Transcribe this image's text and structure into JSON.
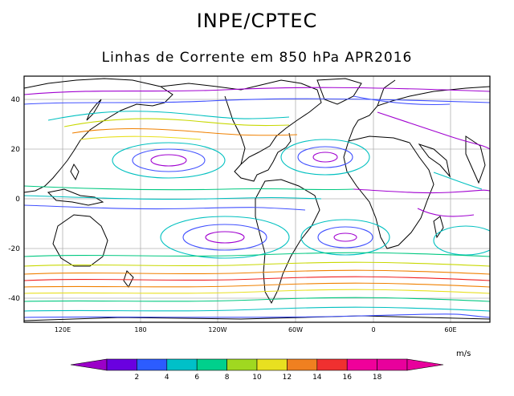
{
  "header": {
    "title": "INPE/CPTEC",
    "subtitle": "Linhas de Corrente em 850 hPa APR2016"
  },
  "map": {
    "lat_ticks": [
      "40",
      "20",
      "0",
      "-20",
      "-40"
    ],
    "lon_ticks": [
      "120E",
      "180",
      "120W",
      "60W",
      "0",
      "60E"
    ]
  },
  "colorbar": {
    "unit": "m/s",
    "labels": [
      "2",
      "4",
      "6",
      "8",
      "10",
      "12",
      "14",
      "16",
      "18"
    ],
    "colors": [
      "#9b00c8",
      "#6a00e0",
      "#2c5cff",
      "#00c0c8",
      "#00d08c",
      "#a0d820",
      "#e8e020",
      "#f08020",
      "#f03030",
      "#f0009a",
      "#e8009c"
    ]
  },
  "streamline_colors": {
    "weak": "#a000d0",
    "light": "#4050ff",
    "moderate": "#00c0c0",
    "fresh": "#00c880",
    "strong": "#c8d800",
    "very_strong": "#f08000",
    "jet": "#f02020"
  }
}
